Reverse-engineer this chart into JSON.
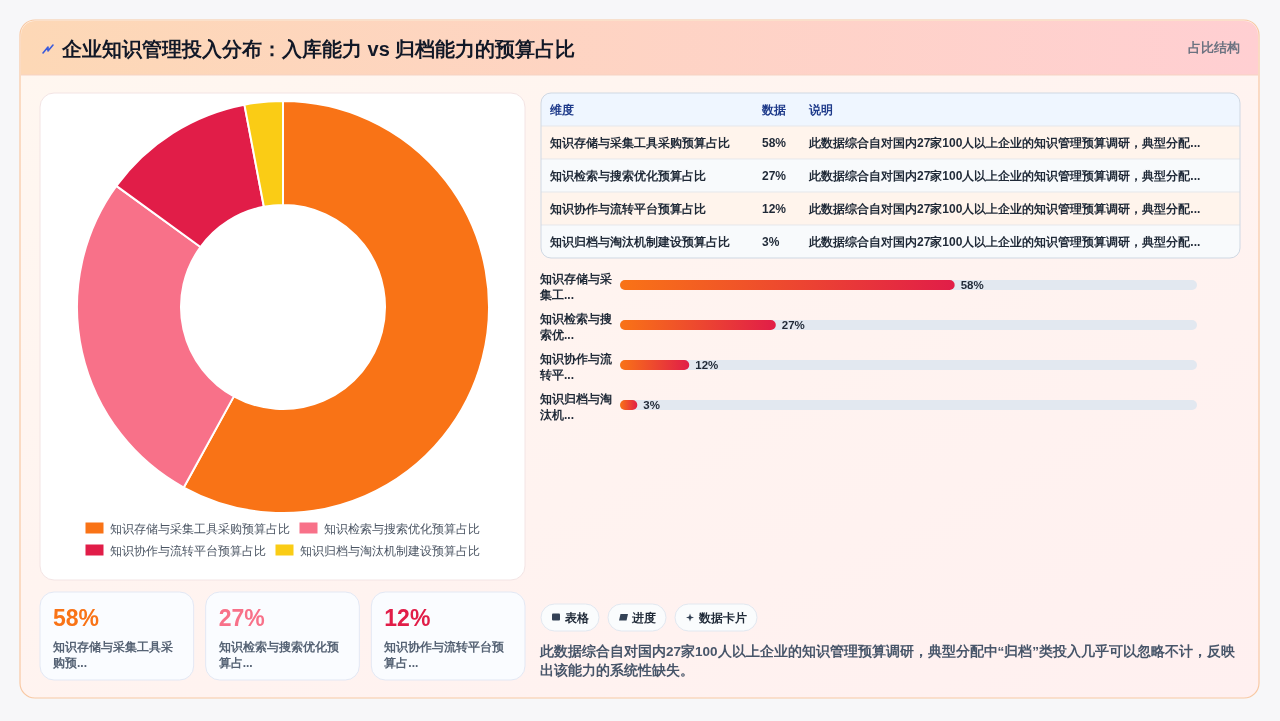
{
  "chart_data": [
    {
      "type": "donut",
      "title": "企业知识管理投入分布：入库能力 vs 归档能力的预算占比",
      "categories": [
        "知识存储与采集工具采购预算占比",
        "知识检索与搜索优化预算占比",
        "知识协作与流转平台预算占比",
        "知识归档与淘汰机制建设预算占比"
      ],
      "values": [
        58,
        27,
        12,
        3
      ],
      "colors": [
        "#f97316",
        "#f87189",
        "#e11d48",
        "#facc15"
      ],
      "legend": "bottom",
      "annotations": [
        "此数据综合自对国内27家100人以上企业的知识管理预算调研，典型分配中“归档”类投入几乎可以忽略不计，反映出该能力的系统性缺失。"
      ]
    },
    {
      "type": "other",
      "title": "占比结构",
      "categories": [
        "知识存储与采集工具采购预算占比",
        "知识检索与搜索优化预算占比",
        "知识协作与流转平台预算占比",
        "知识归档与淘汰机制建设预算占比"
      ],
      "annotations": [
        "维度",
        "数据",
        "说明",
        "58%",
        "27%",
        "12%",
        "3%",
        "此数据综合自对国内27家100人以上企业的知识管理预算调研，典型分配...",
        "此数据综合自对国内27家100人以上企业的知识管理预算调研，典型分配...",
        "此数据综合自对国内27家100人以上企业的知识管理预算调研，典型分配...",
        "此数据综合自对国内27家100人以上企业的知识管理预算调研，典型分配..."
      ]
    },
    {
      "type": "bar",
      "orientation": "horizontal",
      "categories": [
        "知识存储与采集工...",
        "知识检索与搜索优...",
        "知识协作与流转平...",
        "知识归档与淘汰机..."
      ],
      "values": [
        58,
        27,
        12,
        3
      ],
      "value_labels": [
        "58%",
        "27%",
        "12%",
        "3%"
      ],
      "color": "#f97316"
    },
    {
      "type": "other",
      "categories": [
        "知识存储与采集工具采购预...",
        "知识检索与搜索优化预算占...",
        "知识协作与流转平台预算占..."
      ],
      "annotations": [
        "58%",
        "27%",
        "12%"
      ]
    },
    {
      "type": "other",
      "annotations": [
        "表格",
        "进度",
        "数据卡片"
      ]
    }
  ]
}
